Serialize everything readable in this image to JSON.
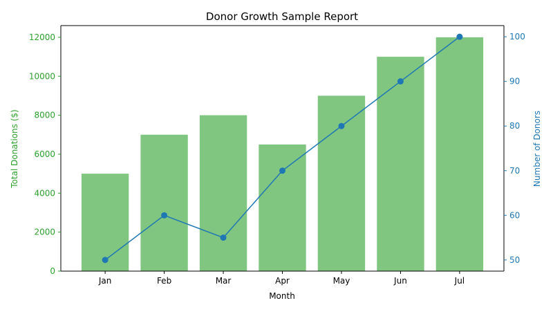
{
  "chart_data": {
    "type": "bar",
    "title": "Donor Growth Sample Report",
    "xlabel": "Month",
    "categories": [
      "Jan",
      "Feb",
      "Mar",
      "Apr",
      "May",
      "Jun",
      "Jul"
    ],
    "series": [
      {
        "type": "bar",
        "axis": "left",
        "values": [
          5000,
          7000,
          8000,
          6500,
          9000,
          11000,
          12000
        ],
        "color": "#2ca02c"
      },
      {
        "type": "line",
        "axis": "right",
        "values": [
          50,
          60,
          55,
          70,
          80,
          90,
          100
        ],
        "color": "#1f77b4"
      }
    ],
    "y_left": {
      "label": "Total Donations ($)",
      "ylim": [
        0,
        12600
      ],
      "ticks": [
        0,
        2000,
        4000,
        6000,
        8000,
        10000,
        12000
      ],
      "color": "#2ca02c"
    },
    "y_right": {
      "label": "Number of Donors",
      "ylim": [
        47.5,
        102.5
      ],
      "ticks": [
        50,
        60,
        70,
        80,
        90,
        100
      ],
      "color": "#1f77b4"
    },
    "grid": false,
    "legend": "none"
  }
}
